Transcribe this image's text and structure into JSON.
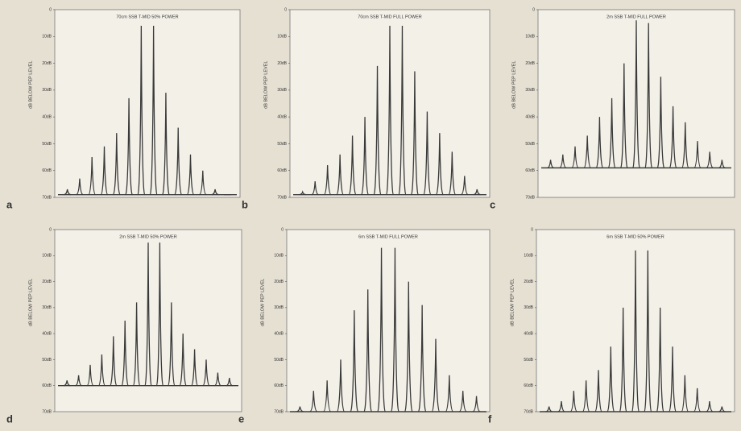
{
  "chart_data": [
    {
      "type": "spectrum",
      "label": "a",
      "title": "70cm SSB T-MID 50% POWER",
      "ylabel": "dB BELOW PEP LEVEL",
      "color": "#3a3a3a",
      "ylim": [
        -70,
        0
      ],
      "yticks": [
        0,
        {
          "value": -10,
          "label": "10dB"
        },
        {
          "value": -20,
          "label": "20dB"
        },
        {
          "value": -30,
          "label": "30dB"
        },
        {
          "value": -40,
          "label": "40dB"
        },
        {
          "value": -50,
          "label": "50dB"
        },
        {
          "value": -60,
          "label": "60dB"
        },
        {
          "value": -70,
          "label": "70dB"
        }
      ],
      "floor": -69,
      "values": [
        -67,
        -63,
        -55,
        -51,
        -46,
        -33,
        -6,
        -6,
        -31,
        -44,
        -54,
        -60,
        -67,
        -69
      ]
    },
    {
      "type": "spectrum",
      "label": "b",
      "title": "70cm SSB T-MID FULL POWER",
      "ylabel": "dB BELOW PEP LEVEL",
      "color": "#3a3a3a",
      "ylim": [
        -70,
        0
      ],
      "yticks": [
        0,
        {
          "value": -10,
          "label": "10dB"
        },
        {
          "value": -20,
          "label": "20dB"
        },
        {
          "value": -30,
          "label": "30dB"
        },
        {
          "value": -40,
          "label": "40dB"
        },
        {
          "value": -50,
          "label": "50dB"
        },
        {
          "value": -60,
          "label": "60dB"
        },
        {
          "value": -70,
          "label": "70dB"
        }
      ],
      "floor": -69,
      "values": [
        -68,
        -64,
        -58,
        -54,
        -47,
        -40,
        -21,
        -6,
        -6,
        -23,
        -38,
        -46,
        -53,
        -62,
        -67
      ]
    },
    {
      "type": "spectrum",
      "label": "c",
      "title": "2m SSB T-MID FULL POWER",
      "ylabel": "dB BELOW PEP LEVEL",
      "color": "#3a3a3a",
      "ylim": [
        -70,
        0
      ],
      "yticks": [
        0,
        {
          "value": -10,
          "label": "10dB"
        },
        {
          "value": -20,
          "label": "20dB"
        },
        {
          "value": -30,
          "label": "30dB"
        },
        {
          "value": -40,
          "label": "40dB"
        },
        {
          "value": -50,
          "label": "50dB"
        },
        {
          "value": -60,
          "label": "60dB"
        },
        {
          "value": -70,
          "label": "70dB"
        }
      ],
      "floor": -59,
      "values": [
        -56,
        -54,
        -51,
        -47,
        -40,
        -33,
        -20,
        -4,
        -5,
        -25,
        -36,
        -42,
        -49,
        -53,
        -56
      ]
    },
    {
      "type": "spectrum",
      "label": "d",
      "title": "2m SSB T-MID 50% POWER",
      "ylabel": "dB BELOW PEP LEVEL",
      "color": "#3a3a3a",
      "ylim": [
        -70,
        0
      ],
      "yticks": [
        0,
        {
          "value": -10,
          "label": "10dB"
        },
        {
          "value": -20,
          "label": "20dB"
        },
        {
          "value": -30,
          "label": "30dB"
        },
        {
          "value": -40,
          "label": "40dB"
        },
        {
          "value": -50,
          "label": "50dB"
        },
        {
          "value": -60,
          "label": "60dB"
        },
        {
          "value": -70,
          "label": "70dB"
        }
      ],
      "floor": -60,
      "values": [
        -58,
        -56,
        -52,
        -48,
        -41,
        -35,
        -28,
        -5,
        -5,
        -28,
        -40,
        -46,
        -50,
        -55,
        -57
      ]
    },
    {
      "type": "spectrum",
      "label": "e",
      "title": "6m SSB T-MID FULL POWER",
      "ylabel": "dB BELOW PEP LEVEL",
      "color": "#3a3a3a",
      "ylim": [
        -70,
        0
      ],
      "yticks": [
        0,
        {
          "value": -10,
          "label": "10dB"
        },
        {
          "value": -20,
          "label": "20dB"
        },
        {
          "value": -30,
          "label": "30dB"
        },
        {
          "value": -40,
          "label": "40dB"
        },
        {
          "value": -50,
          "label": "50dB"
        },
        {
          "value": -60,
          "label": "60dB"
        },
        {
          "value": -70,
          "label": "70dB"
        }
      ],
      "floor": -70,
      "values": [
        -68,
        -62,
        -58,
        -50,
        -31,
        -23,
        -7,
        -7,
        -20,
        -29,
        -42,
        -56,
        -62,
        -64
      ]
    },
    {
      "type": "spectrum",
      "label": "f",
      "title": "6m SSB T-MID 50% POWER",
      "ylabel": "dB BELOW PEP LEVEL",
      "color": "#3a3a3a",
      "ylim": [
        -70,
        0
      ],
      "yticks": [
        0,
        {
          "value": -10,
          "label": "10dB"
        },
        {
          "value": -20,
          "label": "20dB"
        },
        {
          "value": -30,
          "label": "30dB"
        },
        {
          "value": -40,
          "label": "40dB"
        },
        {
          "value": -50,
          "label": "50dB"
        },
        {
          "value": -60,
          "label": "60dB"
        },
        {
          "value": -70,
          "label": "70dB"
        }
      ],
      "floor": -70,
      "values": [
        -68,
        -66,
        -62,
        -58,
        -54,
        -45,
        -30,
        -8,
        -8,
        -30,
        -45,
        -56,
        -61,
        -66,
        -68
      ]
    }
  ]
}
